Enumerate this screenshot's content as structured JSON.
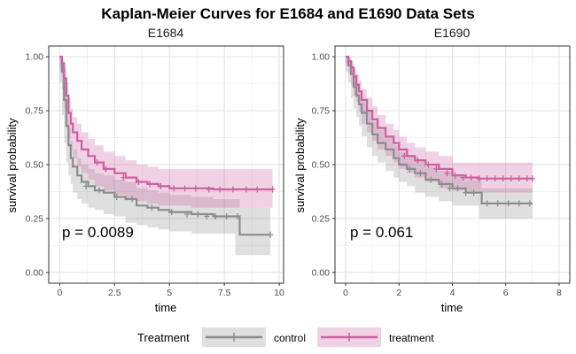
{
  "title": "Kaplan-Meier Curves for E1684 and E1690 Data Sets",
  "colors": {
    "control": "#8c8c8c",
    "treatment": "#cc5fa0"
  },
  "legend": {
    "title": "Treatment",
    "position": "bottom",
    "entries": [
      {
        "key": "control",
        "label": "control"
      },
      {
        "key": "treatment",
        "label": "treatment"
      }
    ]
  },
  "chart_data": [
    {
      "type": "line",
      "subtitle": "E1684",
      "xlabel": "time",
      "ylabel": "survival probability",
      "xlim": [
        -0.5,
        10.2
      ],
      "ylim": [
        -0.05,
        1.05
      ],
      "xticks": [
        0,
        2.5,
        5,
        7.5,
        10
      ],
      "xtick_labels": [
        "0",
        "2.5",
        "5",
        "7.5",
        "10"
      ],
      "yticks": [
        0,
        0.25,
        0.5,
        0.75,
        1
      ],
      "ytick_labels": [
        "0.00",
        "0.25",
        "0.50",
        "0.75",
        "1.00"
      ],
      "grid": true,
      "pvalue": "p = 0.0089",
      "series": [
        {
          "name": "control",
          "x": [
            0,
            0.1,
            0.2,
            0.3,
            0.4,
            0.5,
            0.6,
            0.8,
            1.0,
            1.3,
            1.6,
            2.0,
            2.5,
            3.0,
            3.5,
            4.0,
            4.5,
            5.0,
            6.0,
            7.0,
            8.0,
            8.2,
            9.6
          ],
          "y": [
            1.0,
            0.93,
            0.8,
            0.68,
            0.59,
            0.53,
            0.49,
            0.45,
            0.42,
            0.4,
            0.38,
            0.37,
            0.35,
            0.34,
            0.31,
            0.3,
            0.29,
            0.28,
            0.27,
            0.26,
            0.26,
            0.175,
            0.175
          ],
          "lower": [
            1.0,
            0.88,
            0.73,
            0.6,
            0.51,
            0.45,
            0.41,
            0.37,
            0.34,
            0.32,
            0.3,
            0.29,
            0.27,
            0.26,
            0.23,
            0.22,
            0.21,
            0.2,
            0.19,
            0.18,
            0.18,
            0.08,
            0.08
          ],
          "upper": [
            1.0,
            0.97,
            0.87,
            0.76,
            0.67,
            0.61,
            0.57,
            0.53,
            0.5,
            0.48,
            0.46,
            0.45,
            0.43,
            0.42,
            0.39,
            0.38,
            0.37,
            0.36,
            0.35,
            0.34,
            0.34,
            0.3,
            0.3
          ],
          "censor_x": [
            1.2,
            1.8,
            2.6,
            3.3,
            4.2,
            5.1,
            5.8,
            6.3,
            6.7,
            7.1,
            7.6,
            8.1,
            9.6
          ],
          "censor_y": [
            0.4,
            0.38,
            0.35,
            0.34,
            0.3,
            0.28,
            0.27,
            0.27,
            0.26,
            0.26,
            0.26,
            0.26,
            0.175
          ]
        },
        {
          "name": "treatment",
          "x": [
            0,
            0.1,
            0.2,
            0.3,
            0.4,
            0.5,
            0.6,
            0.8,
            1.0,
            1.3,
            1.6,
            2.0,
            2.5,
            3.0,
            3.5,
            4.0,
            4.5,
            5.0,
            6.0,
            7.0,
            8.0,
            9.7
          ],
          "y": [
            1.0,
            0.97,
            0.9,
            0.82,
            0.74,
            0.69,
            0.65,
            0.61,
            0.57,
            0.54,
            0.51,
            0.48,
            0.46,
            0.44,
            0.42,
            0.41,
            0.4,
            0.39,
            0.39,
            0.385,
            0.385,
            0.385
          ],
          "lower": [
            1.0,
            0.94,
            0.85,
            0.76,
            0.67,
            0.62,
            0.57,
            0.53,
            0.49,
            0.46,
            0.43,
            0.4,
            0.38,
            0.36,
            0.34,
            0.33,
            0.32,
            0.31,
            0.31,
            0.3,
            0.3,
            0.3
          ],
          "upper": [
            1.0,
            0.99,
            0.95,
            0.88,
            0.81,
            0.76,
            0.72,
            0.69,
            0.65,
            0.62,
            0.59,
            0.56,
            0.54,
            0.52,
            0.5,
            0.49,
            0.48,
            0.48,
            0.48,
            0.48,
            0.48,
            0.48
          ],
          "censor_x": [
            1.7,
            2.1,
            2.9,
            3.6,
            4.1,
            4.6,
            5.2,
            5.7,
            6.2,
            6.8,
            7.3,
            7.9,
            8.5,
            9.0,
            9.7
          ],
          "censor_y": [
            0.51,
            0.48,
            0.44,
            0.42,
            0.41,
            0.4,
            0.39,
            0.39,
            0.39,
            0.385,
            0.385,
            0.385,
            0.385,
            0.385,
            0.385
          ]
        }
      ]
    },
    {
      "type": "line",
      "subtitle": "E1690",
      "xlabel": "time",
      "ylabel": "survival probability",
      "xlim": [
        -0.4,
        8.4
      ],
      "ylim": [
        -0.05,
        1.05
      ],
      "xticks": [
        0,
        2,
        4,
        6,
        8
      ],
      "xtick_labels": [
        "0",
        "2",
        "4",
        "6",
        "8"
      ],
      "yticks": [
        0,
        0.25,
        0.5,
        0.75,
        1
      ],
      "ytick_labels": [
        "0.00",
        "0.25",
        "0.50",
        "0.75",
        "1.00"
      ],
      "grid": true,
      "pvalue": "p = 0.061",
      "series": [
        {
          "name": "control",
          "x": [
            0,
            0.1,
            0.2,
            0.3,
            0.4,
            0.5,
            0.6,
            0.8,
            1.0,
            1.2,
            1.5,
            1.8,
            2.0,
            2.3,
            2.6,
            3.0,
            3.5,
            4.0,
            4.5,
            5.0,
            5.1,
            7.0
          ],
          "y": [
            1.0,
            0.96,
            0.92,
            0.86,
            0.82,
            0.78,
            0.74,
            0.69,
            0.64,
            0.6,
            0.57,
            0.53,
            0.5,
            0.48,
            0.46,
            0.43,
            0.41,
            0.39,
            0.37,
            0.37,
            0.32,
            0.32
          ],
          "lower": [
            1.0,
            0.93,
            0.88,
            0.81,
            0.76,
            0.72,
            0.68,
            0.63,
            0.58,
            0.54,
            0.51,
            0.47,
            0.44,
            0.42,
            0.4,
            0.37,
            0.35,
            0.33,
            0.31,
            0.31,
            0.25,
            0.25
          ],
          "upper": [
            1.0,
            0.99,
            0.96,
            0.91,
            0.88,
            0.84,
            0.8,
            0.75,
            0.7,
            0.66,
            0.63,
            0.59,
            0.56,
            0.54,
            0.52,
            0.49,
            0.47,
            0.45,
            0.43,
            0.43,
            0.39,
            0.39
          ],
          "censor_x": [
            2.4,
            2.8,
            3.2,
            3.6,
            3.9,
            4.2,
            4.5,
            4.8,
            5.3,
            5.7,
            6.1,
            6.5,
            6.9
          ],
          "censor_y": [
            0.48,
            0.46,
            0.43,
            0.41,
            0.39,
            0.39,
            0.37,
            0.37,
            0.32,
            0.32,
            0.32,
            0.32,
            0.32
          ]
        },
        {
          "name": "treatment",
          "x": [
            0,
            0.1,
            0.2,
            0.3,
            0.4,
            0.5,
            0.6,
            0.8,
            1.0,
            1.2,
            1.5,
            1.8,
            2.0,
            2.3,
            2.6,
            3.0,
            3.5,
            4.0,
            4.5,
            5.0,
            6.0,
            7.0
          ],
          "y": [
            1.0,
            0.98,
            0.95,
            0.91,
            0.87,
            0.84,
            0.8,
            0.75,
            0.71,
            0.67,
            0.63,
            0.6,
            0.57,
            0.54,
            0.52,
            0.5,
            0.48,
            0.45,
            0.44,
            0.435,
            0.435,
            0.435
          ],
          "lower": [
            1.0,
            0.96,
            0.92,
            0.87,
            0.82,
            0.79,
            0.75,
            0.69,
            0.65,
            0.61,
            0.57,
            0.54,
            0.51,
            0.48,
            0.46,
            0.44,
            0.42,
            0.39,
            0.38,
            0.37,
            0.37,
            0.37
          ],
          "upper": [
            1.0,
            1.0,
            0.98,
            0.95,
            0.92,
            0.89,
            0.85,
            0.81,
            0.77,
            0.73,
            0.69,
            0.66,
            0.63,
            0.6,
            0.58,
            0.56,
            0.54,
            0.51,
            0.51,
            0.51,
            0.51,
            0.51
          ],
          "censor_x": [
            2.2,
            2.7,
            3.1,
            3.4,
            3.8,
            4.1,
            4.4,
            4.7,
            5.0,
            5.3,
            5.6,
            5.9,
            6.2,
            6.5,
            6.8,
            7.0
          ],
          "censor_y": [
            0.54,
            0.52,
            0.5,
            0.48,
            0.46,
            0.45,
            0.44,
            0.44,
            0.435,
            0.435,
            0.435,
            0.435,
            0.435,
            0.435,
            0.435,
            0.435
          ]
        }
      ]
    }
  ]
}
